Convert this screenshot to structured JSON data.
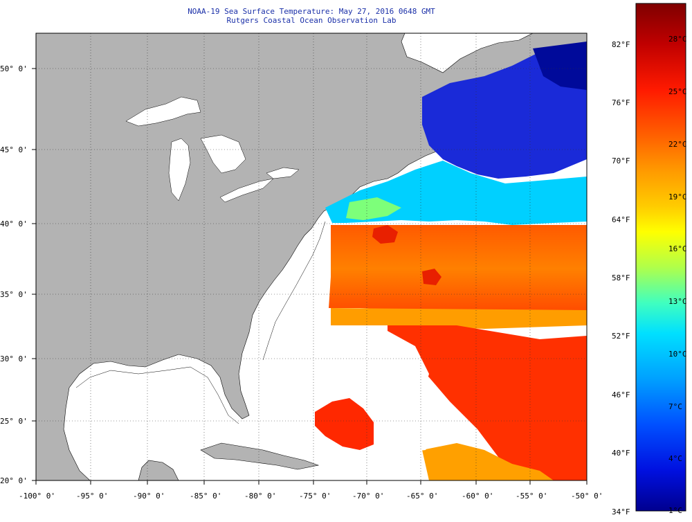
{
  "header": {
    "title": "NOAA-19 Sea Surface Temperature:  May 27, 2016 0648 GMT",
    "subtitle": "Rutgers Coastal Ocean Observation Lab"
  },
  "map": {
    "lat_labels": [
      "50° 0'",
      "45° 0'",
      "40° 0'",
      "35° 0'",
      "30° 0'",
      "25° 0'",
      "20° 0'"
    ],
    "lon_labels": [
      "-100° 0'",
      "-95° 0'",
      "-90° 0'",
      "-85° 0'",
      "-80° 0'",
      "-75° 0'",
      "-70° 0'",
      "-65° 0'",
      "-60° 0'",
      "-55° 0'",
      "-50° 0'"
    ],
    "colors": {
      "land": "#b3b3b3",
      "no_data": "#ffffff",
      "lakes": "#ffffff"
    }
  },
  "colorbar": {
    "fahrenheit_labels": [
      "82°F",
      "76°F",
      "70°F",
      "64°F",
      "58°F",
      "52°F",
      "46°F",
      "40°F",
      "34°F"
    ],
    "celsius_labels": [
      "28°C",
      "25°C",
      "22°C",
      "19°C",
      "16°C",
      "13°C",
      "10°C",
      "7°C",
      "4°C",
      "1°C"
    ],
    "gradient": [
      "#7f0000",
      "#c00000",
      "#ff1a00",
      "#ff6000",
      "#ff9a00",
      "#ffcc00",
      "#ffff00",
      "#b0ff4a",
      "#40ffbf",
      "#00e0ff",
      "#00a0ff",
      "#0050ff",
      "#0010e0",
      "#00008f"
    ]
  }
}
